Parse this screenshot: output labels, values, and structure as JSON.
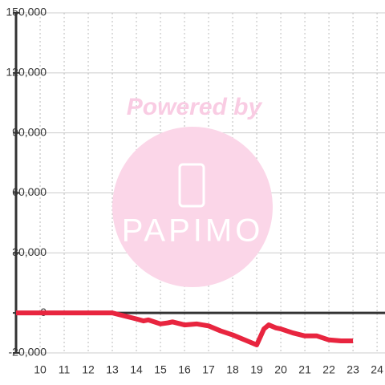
{
  "chart_data": {
    "type": "line",
    "watermark": {
      "line1": "Powered by",
      "line2": "PAPIMO"
    },
    "x": [
      9,
      13,
      13.5,
      14,
      14.3,
      14.5,
      15,
      15.3,
      15.5,
      16,
      16.5,
      17,
      17.5,
      18,
      18.5,
      19,
      19.3,
      19.5,
      19.8,
      20,
      20.5,
      21,
      21.5,
      22,
      22.5,
      23
    ],
    "series": [
      {
        "color": "#e8253f",
        "values": [
          0,
          0,
          -1500,
          -3000,
          -4000,
          -3500,
          -5500,
          -5000,
          -4500,
          -6000,
          -5500,
          -6500,
          -9000,
          -11000,
          -13500,
          -16000,
          -8000,
          -6000,
          -7500,
          -8000,
          -10000,
          -11500,
          -11500,
          -13500,
          -14000,
          -14000
        ]
      }
    ],
    "xlim": [
      9,
      24.33
    ],
    "xticks": [
      10,
      11,
      12,
      13,
      14,
      15,
      16,
      17,
      18,
      19,
      20,
      21,
      22,
      23,
      24
    ],
    "ylim": [
      -20000,
      150000
    ],
    "yticks": [
      {
        "value": -20000,
        "label": "-20,000"
      },
      0,
      {
        "value": 30000,
        "label": "30,000"
      },
      {
        "value": 60000,
        "label": "60,000"
      },
      {
        "value": 90000,
        "label": "90,000"
      },
      {
        "value": 120000,
        "label": "120,000"
      },
      {
        "value": 150000,
        "label": "150,000"
      }
    ],
    "grid": true
  }
}
